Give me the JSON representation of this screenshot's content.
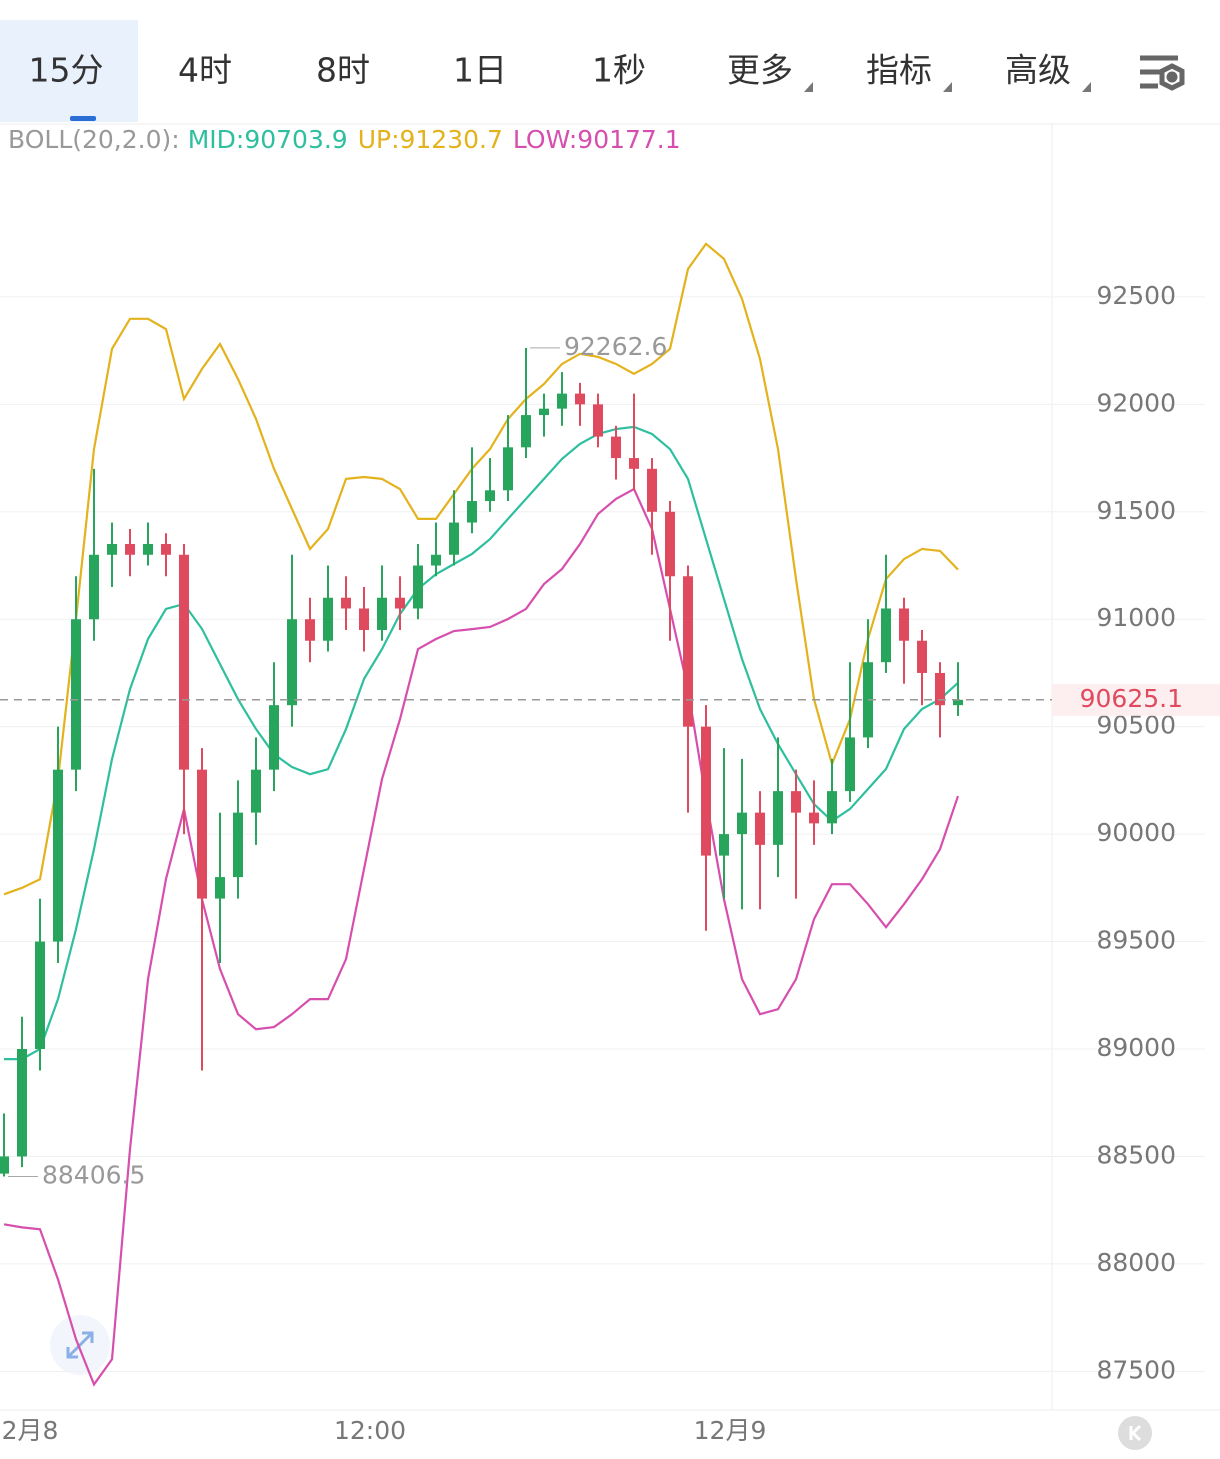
{
  "tabs": [
    "15分",
    "4时",
    "8时",
    "1日",
    "1秒",
    "更多",
    "指标",
    "高级"
  ],
  "chart_data": {
    "type": "candlestick",
    "indicator": "BOLL(20,2.0):",
    "categories": [
      null,
      "2月8",
      null,
      null,
      null,
      null,
      null,
      null,
      null,
      null,
      null,
      null,
      null,
      null,
      null,
      null,
      null,
      null,
      null,
      null,
      "12:00",
      null,
      null,
      null,
      null,
      null,
      null,
      null,
      null,
      null,
      null,
      null,
      null,
      null,
      null,
      null,
      null,
      null,
      null,
      null,
      "12月9",
      null,
      null,
      null,
      null,
      null,
      null,
      null,
      null,
      null,
      null,
      null,
      null,
      null
    ],
    "open": [
      88420,
      88500,
      89000,
      89500,
      90300,
      91000,
      91300,
      91350,
      91300,
      91350,
      91300,
      90300,
      89700,
      89800,
      90100,
      90300,
      90600,
      91000,
      90900,
      91100,
      91050,
      90950,
      91100,
      91050,
      91250,
      91300,
      91450,
      91550,
      91600,
      91800,
      91950,
      91980,
      92050,
      92000,
      91850,
      91750,
      91700,
      91500,
      91200,
      90500,
      89900,
      90000,
      90100,
      89950,
      90200,
      90100,
      90050,
      90200,
      90450,
      90800,
      91050,
      90900,
      90750,
      90600
    ],
    "high": [
      88700,
      89150,
      89700,
      90500,
      91200,
      91700,
      91450,
      91420,
      91450,
      91400,
      91350,
      90400,
      90100,
      90250,
      90450,
      90800,
      91300,
      91100,
      91250,
      91200,
      91150,
      91250,
      91200,
      91350,
      91450,
      91600,
      91800,
      91750,
      91950,
      92262.6,
      92050,
      92150,
      92100,
      92050,
      91900,
      92050,
      91750,
      91550,
      91250,
      90600,
      90400,
      90350,
      90200,
      90450,
      90300,
      90250,
      90350,
      90800,
      91000,
      91300,
      91100,
      90950,
      90800,
      90800
    ],
    "low": [
      88406.5,
      88450,
      88900,
      89400,
      90200,
      90900,
      91150,
      91200,
      91250,
      91200,
      90000,
      88900,
      89400,
      89700,
      89950,
      90200,
      90500,
      90800,
      90850,
      90950,
      90850,
      90900,
      90950,
      91000,
      91200,
      91250,
      91400,
      91500,
      91550,
      91750,
      91850,
      91900,
      91900,
      91800,
      91650,
      91600,
      91300,
      90900,
      90100,
      89550,
      89700,
      89650,
      89650,
      89800,
      89700,
      89950,
      90000,
      90150,
      90400,
      90750,
      90700,
      90600,
      90450,
      90550
    ],
    "close": [
      88500,
      89000,
      89500,
      90300,
      91000,
      91300,
      91350,
      91300,
      91350,
      91300,
      90300,
      89700,
      89800,
      90100,
      90300,
      90600,
      91000,
      90900,
      91100,
      91050,
      90950,
      91100,
      91050,
      91250,
      91300,
      91450,
      91550,
      91600,
      91800,
      91950,
      91980,
      92050,
      92000,
      91850,
      91750,
      91700,
      91500,
      91200,
      90500,
      89900,
      90000,
      90100,
      89950,
      90200,
      90100,
      90050,
      90200,
      90450,
      90800,
      91050,
      90900,
      90750,
      90600,
      90625.1
    ],
    "up_color": "#27a55c",
    "down_color": "#e04a5f",
    "series": [
      {
        "name": "MID:90703.9",
        "color": "#2ebf9f",
        "values": [
          88953,
          88953,
          89000,
          89232,
          89558,
          89930,
          90349,
          90675,
          90908,
          91048,
          91071,
          90955,
          90791,
          90628,
          90489,
          90372,
          90312,
          90279,
          90302,
          90489,
          90722,
          90861,
          91024,
          91141,
          91210,
          91257,
          91304,
          91373,
          91467,
          91560,
          91653,
          91746,
          91816,
          91862,
          91885,
          91895,
          91862,
          91792,
          91653,
          91373,
          91094,
          90815,
          90582,
          90419,
          90279,
          90140,
          90061,
          90117,
          90210,
          90303,
          90489,
          90582,
          90628,
          90703.9
        ]
      },
      {
        "name": "UP:91230.7",
        "color": "#e3b21c",
        "values": [
          89720,
          89750,
          89790,
          90256,
          91000,
          91792,
          92258,
          92398,
          92398,
          92350,
          92025,
          92165,
          92281,
          92118,
          91932,
          91700,
          91513,
          91327,
          91420,
          91653,
          91662,
          91653,
          91606,
          91467,
          91467,
          91583,
          91700,
          91792,
          91932,
          92025,
          92095,
          92188,
          92235,
          92221,
          92188,
          92142,
          92188,
          92258,
          92630,
          92747,
          92677,
          92491,
          92211,
          91792,
          91187,
          90628,
          90326,
          90535,
          90908,
          91187,
          91280,
          91327,
          91318,
          91230.7
        ]
      },
      {
        "name": "LOW:90177.1",
        "color": "#d64fae",
        "values": [
          88184,
          88170,
          88161,
          87928,
          87649,
          87439,
          87556,
          88534,
          89325,
          89791,
          90116,
          89697,
          89372,
          89162,
          89092,
          89102,
          89162,
          89232,
          89232,
          89418,
          89837,
          90256,
          90535,
          90861,
          90908,
          90945,
          90954,
          90964,
          91001,
          91048,
          91164,
          91234,
          91350,
          91490,
          91560,
          91606,
          91420,
          91048,
          90675,
          90163,
          89697,
          89325,
          89162,
          89185,
          89325,
          89604,
          89767,
          89767,
          89674,
          89567,
          89674,
          89790,
          89930,
          90177.1
        ]
      }
    ],
    "ylim": [
      87320,
      93300
    ],
    "yticks": [
      87500,
      88000,
      88500,
      89000,
      89500,
      90000,
      90500,
      91000,
      91500,
      92000,
      92500
    ],
    "grid": true,
    "max_label": 92262.6,
    "min_label": 88406.5,
    "last_price": 90625.1,
    "last_price_color": "#e04a5f"
  }
}
